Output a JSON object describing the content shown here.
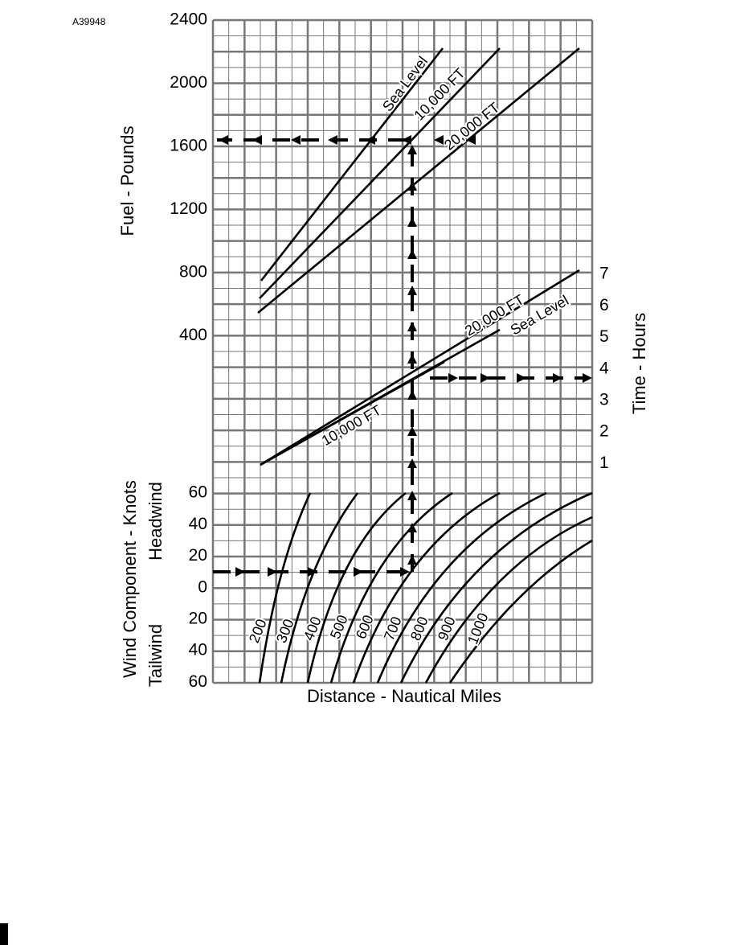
{
  "figure_id": "A39948",
  "fuel_axis": {
    "title": "Fuel - Pounds",
    "ticks": [
      "2400",
      "2000",
      "1600",
      "1200",
      "800",
      "400"
    ],
    "curve_labels": [
      "Sea Level",
      "10,000 FT",
      "20,000 FT"
    ]
  },
  "time_axis": {
    "title": "Time - Hours",
    "ticks": [
      "7",
      "6",
      "5",
      "4",
      "3",
      "2",
      "1"
    ],
    "curve_labels": [
      "20,000 FT",
      "Sea Level",
      "10,000 FT"
    ]
  },
  "wind_axis": {
    "title": "Wind Component - Knots",
    "headwind": "Headwind",
    "tailwind": "Tailwind",
    "ticks": [
      "60",
      "40",
      "20",
      "0",
      "20",
      "40",
      "60"
    ]
  },
  "distance_axis": {
    "title": "Distance - Nautical Miles",
    "curve_labels": [
      "200",
      "300",
      "400",
      "500",
      "600",
      "700",
      "800",
      "900",
      "1000"
    ]
  }
}
